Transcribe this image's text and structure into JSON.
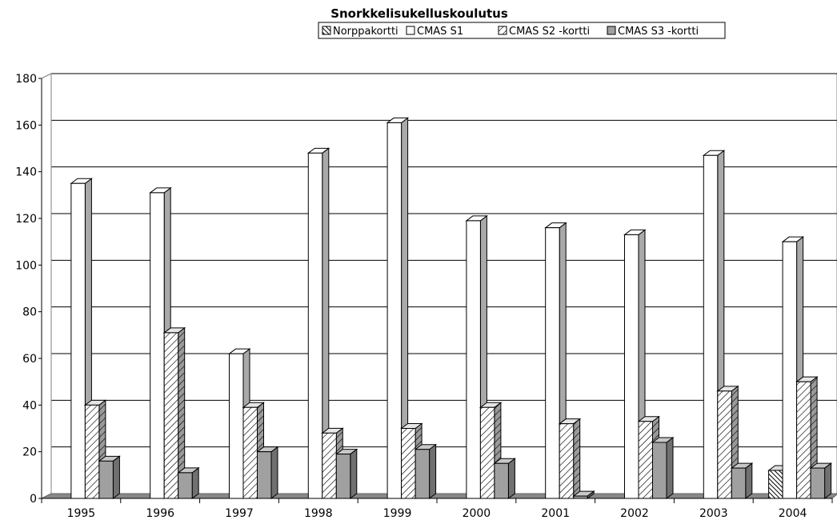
{
  "chart_data": {
    "type": "bar",
    "title": "Snorkkelisukelluskoulutus",
    "xlabel": "",
    "ylabel": "",
    "categories": [
      "1995",
      "1996",
      "1997",
      "1998",
      "1999",
      "2000",
      "2001",
      "2002",
      "2003",
      "2004"
    ],
    "ylim": [
      0,
      180
    ],
    "yticks": [
      "0",
      "20",
      "40",
      "60",
      "80",
      "100",
      "120",
      "140",
      "160",
      "180"
    ],
    "grid": true,
    "legend_position": "top",
    "series": [
      {
        "name": "Norppakortti",
        "pattern": "dense-diagonal",
        "color": "#ffffff",
        "values": [
          0,
          0,
          0,
          0,
          0,
          0,
          0,
          0,
          0,
          12
        ]
      },
      {
        "name": "CMAS S1",
        "pattern": "solid",
        "color": "#ffffff",
        "values": [
          135,
          131,
          62,
          148,
          161,
          119,
          116,
          113,
          147,
          110
        ]
      },
      {
        "name": "CMAS S2 -kortti",
        "pattern": "diagonal",
        "color": "#ffffff",
        "values": [
          40,
          71,
          39,
          28,
          30,
          39,
          32,
          33,
          46,
          50
        ]
      },
      {
        "name": "CMAS S3 -kortti",
        "pattern": "solid",
        "color": "#a0a0a0",
        "values": [
          16,
          11,
          20,
          19,
          21,
          15,
          1,
          24,
          13,
          13
        ]
      }
    ]
  }
}
